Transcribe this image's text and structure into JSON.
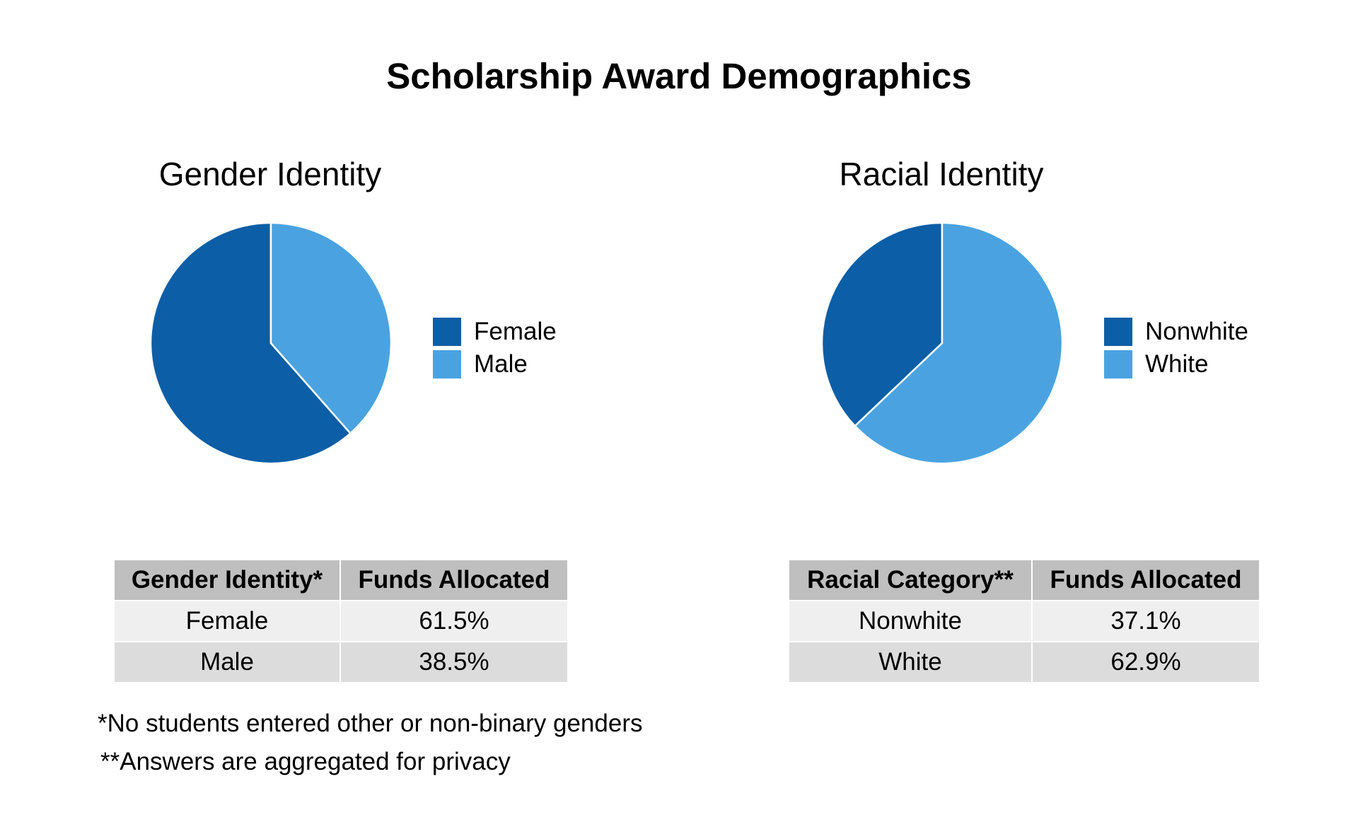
{
  "title": "Scholarship Award Demographics",
  "colors": {
    "dark_blue": "#0c5ea6",
    "light_blue": "#4aa3e0",
    "header_gray": "#bfbfbf"
  },
  "chart_data": [
    {
      "type": "pie",
      "title": "Gender Identity",
      "categories": [
        "Female",
        "Male"
      ],
      "values": [
        61.5,
        38.5
      ],
      "colors": [
        "#0c5ea6",
        "#4aa3e0"
      ],
      "legend_position": "right"
    },
    {
      "type": "pie",
      "title": "Racial Identity",
      "categories": [
        "Nonwhite",
        "White"
      ],
      "values": [
        37.1,
        62.9
      ],
      "colors": [
        "#0c5ea6",
        "#4aa3e0"
      ],
      "legend_position": "right"
    }
  ],
  "tables": {
    "gender": {
      "headers": [
        "Gender Identity*",
        "Funds Allocated"
      ],
      "rows": [
        [
          "Female",
          "61.5%"
        ],
        [
          "Male",
          "38.5%"
        ]
      ]
    },
    "race": {
      "headers": [
        "Racial Category**",
        "Funds Allocated"
      ],
      "rows": [
        [
          "Nonwhite",
          "37.1%"
        ],
        [
          "White",
          "62.9%"
        ]
      ]
    }
  },
  "footnotes": [
    "*No students entered other or non-binary genders",
    "**Answers are aggregated for privacy"
  ]
}
